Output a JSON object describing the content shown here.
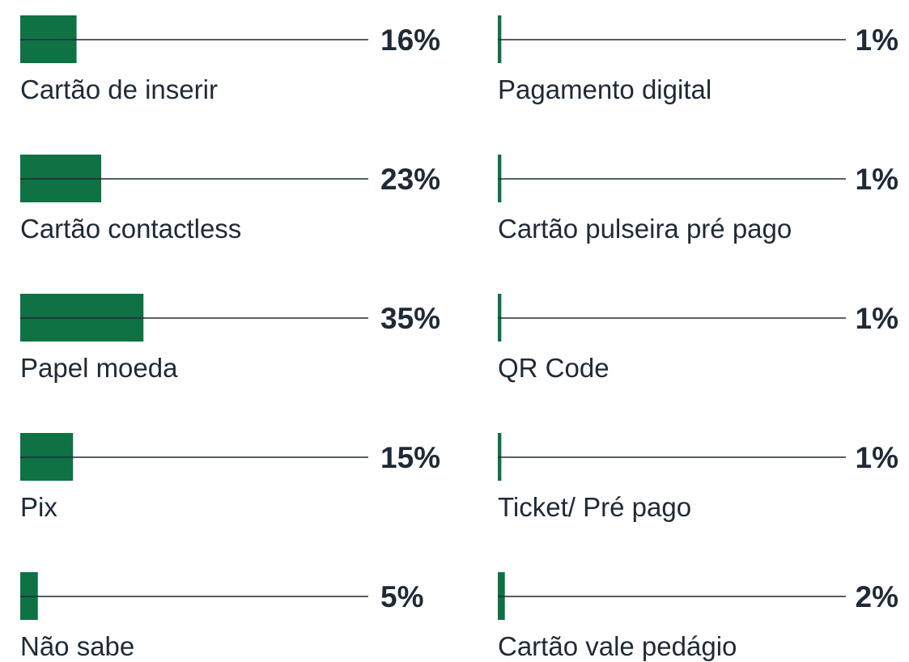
{
  "chart_data": {
    "type": "bar",
    "categories": [
      "Cartão de inserir",
      "Cartão contactless",
      "Papel moeda",
      "Pix",
      "Não sabe",
      "Pagamento digital",
      "Cartão pulseira pré pago",
      "QR Code",
      "Ticket/ Pré pago",
      "Cartão vale pedágio"
    ],
    "values": [
      16,
      23,
      35,
      15,
      5,
      1,
      1,
      1,
      1,
      2
    ],
    "value_labels": [
      "16%",
      "23%",
      "35%",
      "15%",
      "5%",
      "1%",
      "1%",
      "1%",
      "1%",
      "2%"
    ],
    "color": "#0e7245"
  }
}
